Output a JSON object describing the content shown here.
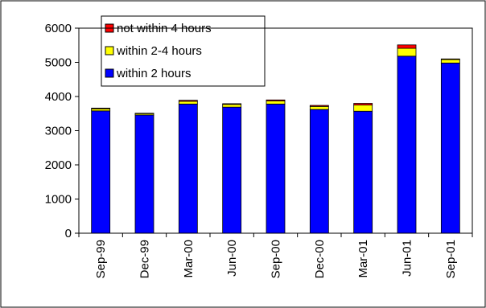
{
  "chart_data": {
    "type": "bar",
    "stacked": true,
    "title": "",
    "xlabel": "",
    "ylabel": "",
    "ylim": [
      0,
      6000
    ],
    "yticks": [
      0,
      1000,
      2000,
      3000,
      4000,
      5000,
      6000
    ],
    "grid": false,
    "legend_position": "top-left",
    "categories": [
      "Sep-99",
      "Dec-99",
      "Mar-00",
      "Jun-00",
      "Sep-00",
      "Dec-00",
      "Mar-01",
      "Jun-01",
      "Sep-01"
    ],
    "series": [
      {
        "name": "within 2 hours",
        "color": "#0000ff",
        "values": [
          3580,
          3460,
          3780,
          3690,
          3780,
          3620,
          3570,
          5180,
          4980
        ]
      },
      {
        "name": "within 2-4 hours",
        "color": "#ffff00",
        "values": [
          60,
          40,
          80,
          80,
          90,
          90,
          180,
          230,
          100
        ]
      },
      {
        "name": "not within 4 hours",
        "color": "#ff0000",
        "values": [
          20,
          10,
          30,
          20,
          30,
          30,
          50,
          100,
          20
        ]
      }
    ]
  }
}
